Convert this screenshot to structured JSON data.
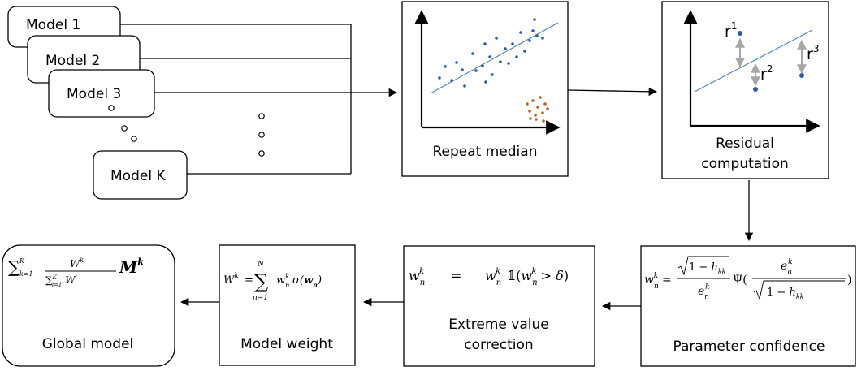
{
  "models": [
    {
      "label": "Model 1"
    },
    {
      "label": "Model 2"
    },
    {
      "label": "Model 3"
    },
    {
      "label": "Model K"
    }
  ],
  "stages": {
    "repeat_median": {
      "label": "Repeat median"
    },
    "residual": {
      "label_line1": "Residual",
      "label_line2": "computation"
    },
    "parameter_confidence": {
      "label": "Parameter confidence"
    },
    "extreme_value": {
      "label_line1": "Extreme value",
      "label_line2": "correction"
    },
    "model_weight": {
      "label": "Model weight"
    },
    "global_model": {
      "label": "Global model"
    }
  },
  "residual_labels": [
    "r",
    "r",
    "r"
  ],
  "residual_superscripts": [
    "1",
    "2",
    "3"
  ],
  "colors": {
    "points": "#2e5d9e",
    "outliers": "#b5651d",
    "fit_line": "#4f81bd",
    "residual_arrow": "#a6a6a6",
    "stroke": "#000000"
  },
  "icons": [
    "ellipsis-dots-icon"
  ]
}
